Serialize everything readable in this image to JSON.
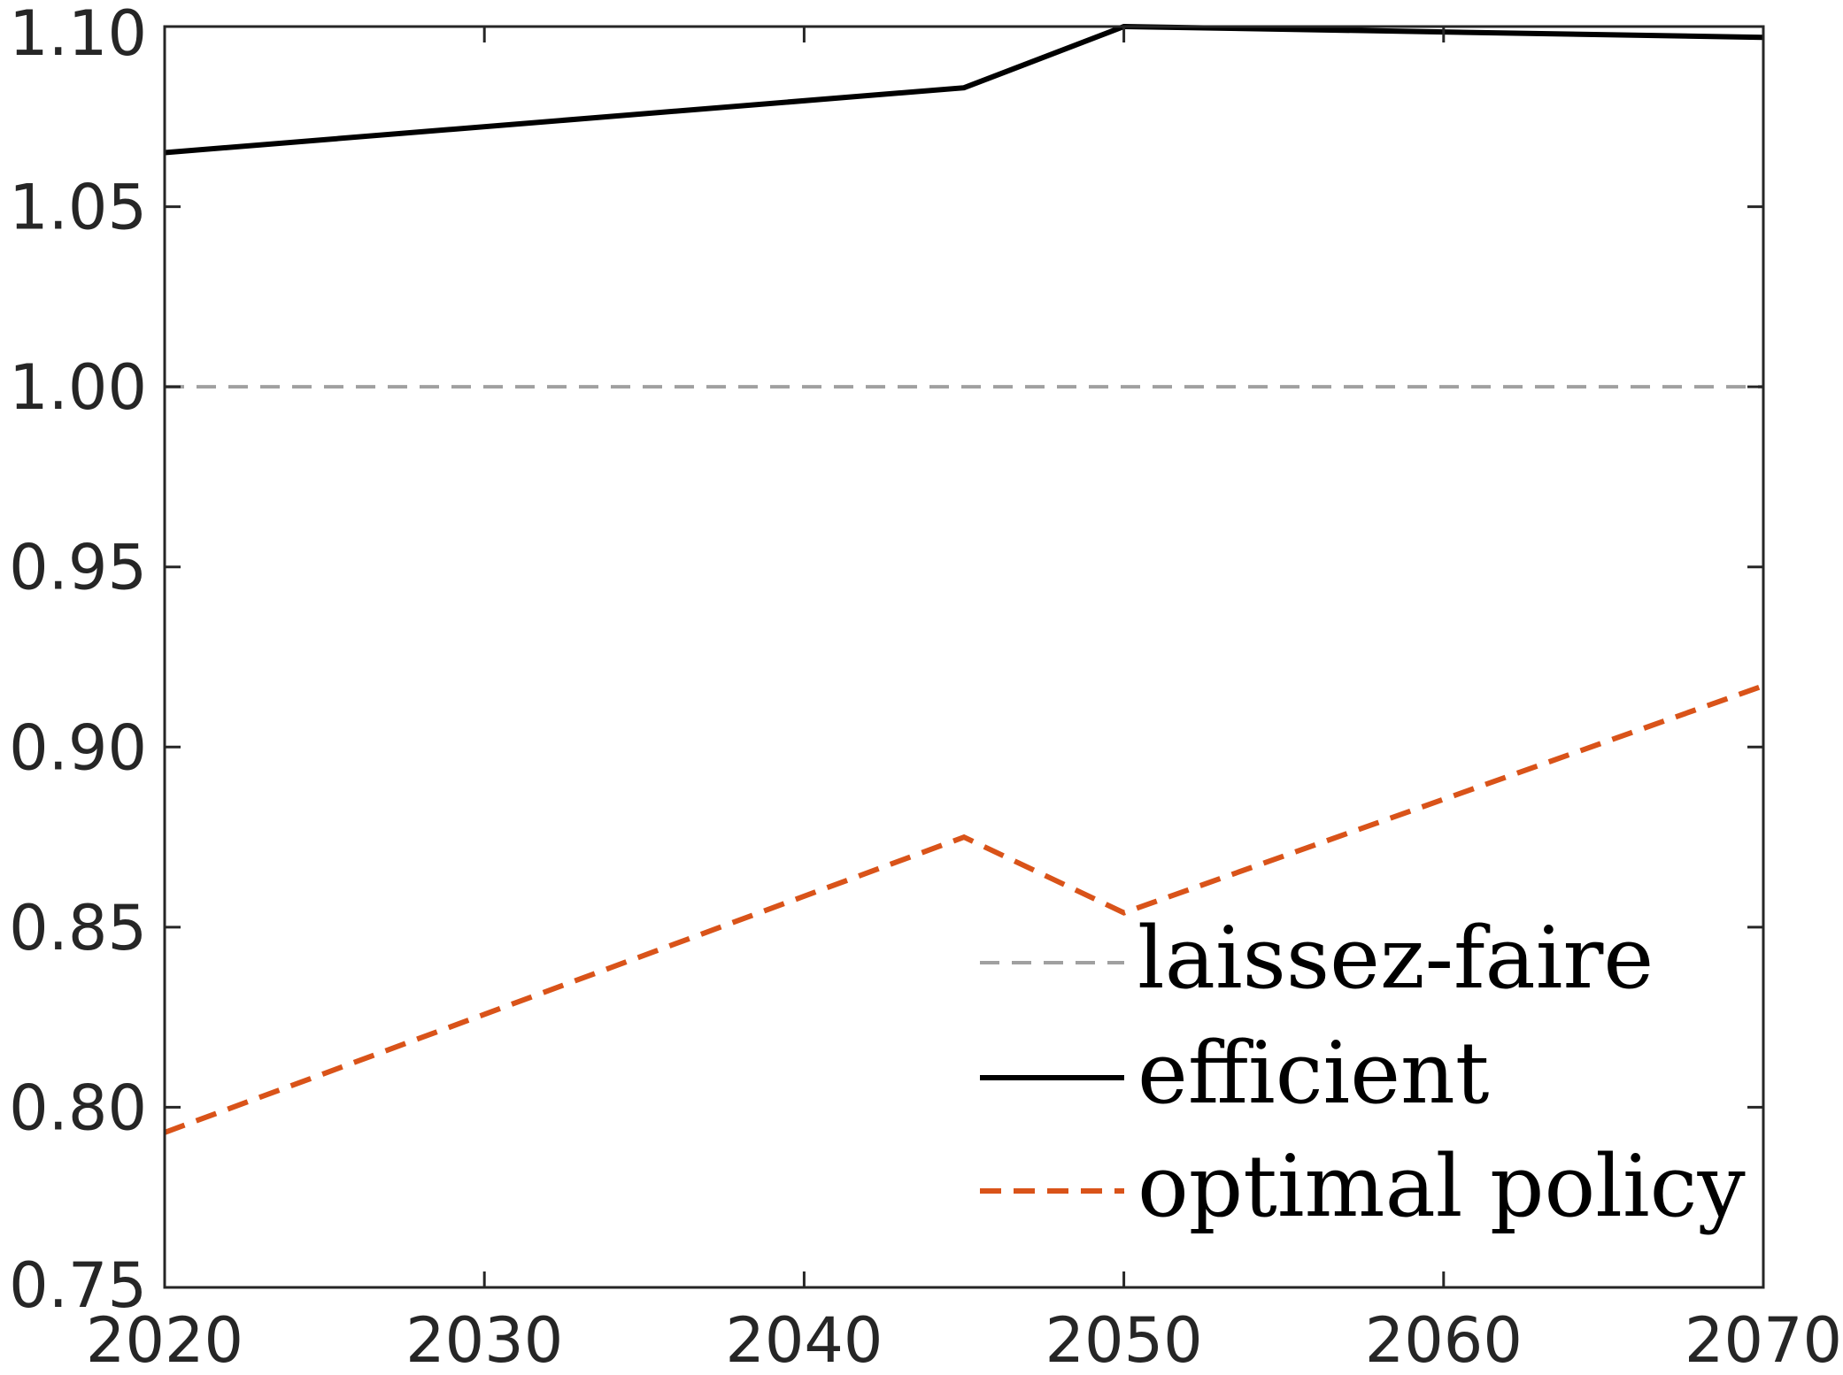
{
  "chart_data": {
    "type": "line",
    "title": "",
    "xlabel": "",
    "ylabel": "",
    "xlim": [
      2020,
      2070
    ],
    "ylim": [
      0.75,
      1.1
    ],
    "x_ticks": [
      2020,
      2030,
      2040,
      2050,
      2060,
      2070
    ],
    "x_tick_labels": [
      "2020",
      "2030",
      "2040",
      "2050",
      "2060",
      "2070"
    ],
    "y_ticks": [
      0.75,
      0.8,
      0.85,
      0.9,
      0.95,
      1.0,
      1.05,
      1.1
    ],
    "y_tick_labels": [
      "0.75",
      "0.80",
      "0.85",
      "0.90",
      "0.95",
      "1.00",
      "1.05",
      "1.10"
    ],
    "grid": false,
    "legend_position": "bottom-right",
    "series": [
      {
        "name": "laissez-faire",
        "style": "dashed",
        "color": "#a0a0a0",
        "x": [
          2020,
          2045,
          2050,
          2070
        ],
        "y": [
          1.0,
          1.0,
          1.0,
          1.0
        ]
      },
      {
        "name": "efficient",
        "style": "solid",
        "color": "#000000",
        "x": [
          2020,
          2045,
          2050,
          2070
        ],
        "y": [
          1.065,
          1.083,
          1.1,
          1.097
        ]
      },
      {
        "name": "optimal policy",
        "style": "dashed",
        "color": "#d95319",
        "x": [
          2020,
          2045,
          2050,
          2070
        ],
        "y": [
          0.793,
          0.875,
          0.854,
          0.917
        ]
      }
    ]
  }
}
